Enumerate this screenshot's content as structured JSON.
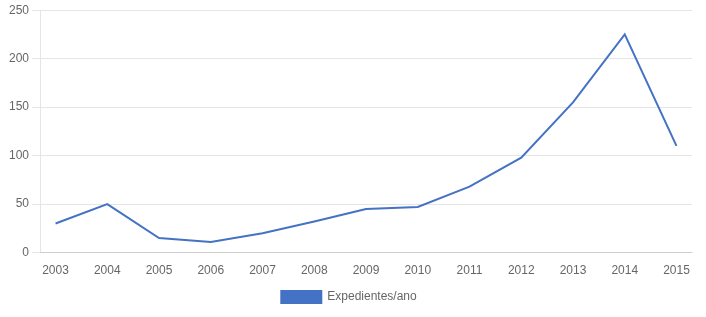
{
  "chart_data": {
    "type": "line",
    "x": [
      2003,
      2004,
      2005,
      2006,
      2007,
      2008,
      2009,
      2010,
      2011,
      2012,
      2013,
      2014,
      2015
    ],
    "series": [
      {
        "name": "Expedientes/ano",
        "color": "#4472C4",
        "values": [
          30,
          50,
          15,
          11,
          20,
          32,
          45,
          47,
          68,
          98,
          155,
          225,
          110
        ]
      }
    ],
    "xlim": [
      2002.7,
      2015.3
    ],
    "xticks": [
      2003,
      2004,
      2005,
      2006,
      2007,
      2008,
      2009,
      2010,
      2011,
      2012,
      2013,
      2014,
      2015
    ],
    "ylim": [
      0,
      250
    ],
    "yticks": [
      0,
      50,
      100,
      150,
      200,
      250
    ],
    "grid": "y",
    "legend": "bottom"
  }
}
